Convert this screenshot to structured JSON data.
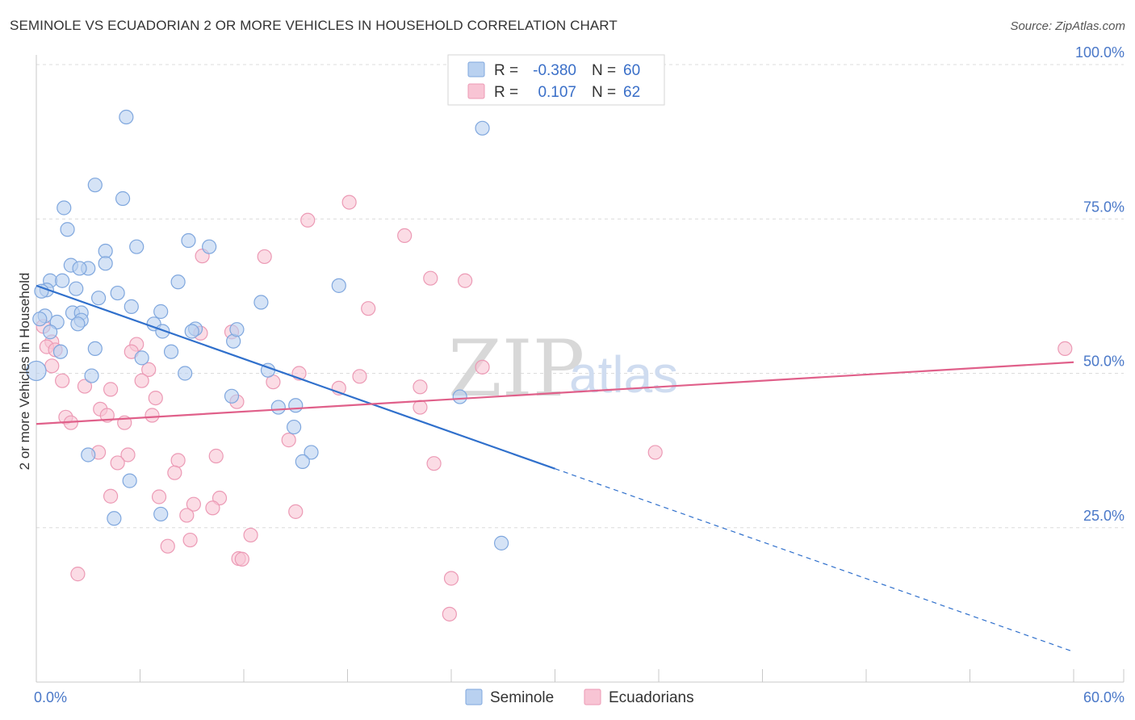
{
  "header": {
    "title": "SEMINOLE VS ECUADORIAN 2 OR MORE VEHICLES IN HOUSEHOLD CORRELATION CHART",
    "source": "Source: ZipAtlas.com"
  },
  "colors": {
    "seminole_fill": "#b9d1f0",
    "seminole_stroke": "#7fa7de",
    "seminole_line": "#3070cc",
    "ecuadorian_fill": "#f8c4d4",
    "ecuadorian_stroke": "#ec9ab5",
    "ecuadorian_line": "#e0608a",
    "grid": "#dcdcdc",
    "tick_text": "#4a78c8"
  },
  "legend": {
    "r_label": "R =",
    "n_label": "N =",
    "series": [
      {
        "r": "-0.380",
        "n": "60"
      },
      {
        "r": "0.107",
        "n": "62"
      }
    ]
  },
  "watermark": {
    "zip": "ZIP",
    "atlas": "atlas"
  },
  "chart_data": {
    "type": "scatter",
    "title": "SEMINOLE VS ECUADORIAN 2 OR MORE VEHICLES IN HOUSEHOLD CORRELATION CHART",
    "xlabel": "",
    "ylabel": "2 or more Vehicles in Household",
    "xlim": [
      0,
      60
    ],
    "ylim": [
      0,
      100
    ],
    "x_tick_labels": [
      "0.0%",
      "60.0%"
    ],
    "y_tick_labels": [
      "100.0%",
      "75.0%",
      "50.0%",
      "25.0%"
    ],
    "y_ticks": [
      100,
      75,
      50,
      25
    ],
    "grid": true,
    "legend_position": "top-center",
    "series": [
      {
        "name": "Seminole",
        "points": [
          [
            5.2,
            91.5
          ],
          [
            3.4,
            80.5
          ],
          [
            5.0,
            78.3
          ],
          [
            1.6,
            76.8
          ],
          [
            1.8,
            73.3
          ],
          [
            8.8,
            71.5
          ],
          [
            5.8,
            70.5
          ],
          [
            10.0,
            70.5
          ],
          [
            4.0,
            69.8
          ],
          [
            4.0,
            67.8
          ],
          [
            2.0,
            67.5
          ],
          [
            3.0,
            67.0
          ],
          [
            2.5,
            67.0
          ],
          [
            0.8,
            65.0
          ],
          [
            1.5,
            65.0
          ],
          [
            8.2,
            64.8
          ],
          [
            0.6,
            63.5
          ],
          [
            2.3,
            63.7
          ],
          [
            0.3,
            63.3
          ],
          [
            4.7,
            63.0
          ],
          [
            3.6,
            62.2
          ],
          [
            13.0,
            61.5
          ],
          [
            5.5,
            60.8
          ],
          [
            7.2,
            60.0
          ],
          [
            2.1,
            59.8
          ],
          [
            2.6,
            59.8
          ],
          [
            0.5,
            59.3
          ],
          [
            0.2,
            58.8
          ],
          [
            2.6,
            58.6
          ],
          [
            1.2,
            58.3
          ],
          [
            2.4,
            58.0
          ],
          [
            6.8,
            58.0
          ],
          [
            7.3,
            56.8
          ],
          [
            9.2,
            57.2
          ],
          [
            0.8,
            56.7
          ],
          [
            9.0,
            56.8
          ],
          [
            11.4,
            55.2
          ],
          [
            3.4,
            54.0
          ],
          [
            1.4,
            53.5
          ],
          [
            7.8,
            53.5
          ],
          [
            6.1,
            52.5
          ],
          [
            13.4,
            50.5
          ],
          [
            8.6,
            50.0
          ],
          [
            3.2,
            49.6
          ],
          [
            11.3,
            46.3
          ],
          [
            14.0,
            44.5
          ],
          [
            15.0,
            44.8
          ],
          [
            14.9,
            41.3
          ],
          [
            15.9,
            37.2
          ],
          [
            15.4,
            35.7
          ],
          [
            3.0,
            36.8
          ],
          [
            5.4,
            32.6
          ],
          [
            7.2,
            27.2
          ],
          [
            4.5,
            26.5
          ],
          [
            26.9,
            22.5
          ],
          [
            25.8,
            89.7
          ],
          [
            17.5,
            64.2
          ],
          [
            0.0,
            50.4
          ],
          [
            24.5,
            46.2
          ],
          [
            11.6,
            57.1
          ]
        ]
      },
      {
        "name": "Ecuadorians",
        "points": [
          [
            18.1,
            77.7
          ],
          [
            15.7,
            74.8
          ],
          [
            21.3,
            72.3
          ],
          [
            9.6,
            69.0
          ],
          [
            13.2,
            68.9
          ],
          [
            22.8,
            65.4
          ],
          [
            24.8,
            65.0
          ],
          [
            19.2,
            60.5
          ],
          [
            0.4,
            57.6
          ],
          [
            0.9,
            55.1
          ],
          [
            11.3,
            56.7
          ],
          [
            9.5,
            56.5
          ],
          [
            0.6,
            54.3
          ],
          [
            1.1,
            53.8
          ],
          [
            5.8,
            54.7
          ],
          [
            5.5,
            53.5
          ],
          [
            0.9,
            51.2
          ],
          [
            6.5,
            50.6
          ],
          [
            25.8,
            51.0
          ],
          [
            15.2,
            50.0
          ],
          [
            18.7,
            49.5
          ],
          [
            6.1,
            48.8
          ],
          [
            1.5,
            48.8
          ],
          [
            13.7,
            48.6
          ],
          [
            2.8,
            47.9
          ],
          [
            22.2,
            47.8
          ],
          [
            17.5,
            47.6
          ],
          [
            4.3,
            47.4
          ],
          [
            6.9,
            46.0
          ],
          [
            11.6,
            45.4
          ],
          [
            3.7,
            44.2
          ],
          [
            22.2,
            44.5
          ],
          [
            4.1,
            43.2
          ],
          [
            1.7,
            42.9
          ],
          [
            6.7,
            43.2
          ],
          [
            2.0,
            42.0
          ],
          [
            5.1,
            42.0
          ],
          [
            14.6,
            39.2
          ],
          [
            3.6,
            37.2
          ],
          [
            35.8,
            37.2
          ],
          [
            5.3,
            36.8
          ],
          [
            10.4,
            36.6
          ],
          [
            8.2,
            35.9
          ],
          [
            4.7,
            35.5
          ],
          [
            23.0,
            35.4
          ],
          [
            8.0,
            33.9
          ],
          [
            4.3,
            30.1
          ],
          [
            7.1,
            30.0
          ],
          [
            10.6,
            29.8
          ],
          [
            9.1,
            28.8
          ],
          [
            10.2,
            28.2
          ],
          [
            15.0,
            27.6
          ],
          [
            8.7,
            27.0
          ],
          [
            12.4,
            23.8
          ],
          [
            8.9,
            23.0
          ],
          [
            7.6,
            22.0
          ],
          [
            11.7,
            20.0
          ],
          [
            11.9,
            19.9
          ],
          [
            2.4,
            17.5
          ],
          [
            24.0,
            16.8
          ],
          [
            23.9,
            11.0
          ],
          [
            59.5,
            54.0
          ]
        ]
      }
    ],
    "trend_lines": [
      {
        "series": "Seminole",
        "x": [
          0,
          60
        ],
        "y": [
          64.2,
          4.9
        ],
        "solid_to_x": 30
      },
      {
        "series": "Ecuadorians",
        "x": [
          0,
          60
        ],
        "y": [
          41.8,
          51.8
        ]
      }
    ]
  },
  "bottom_legend": [
    "Seminole",
    "Ecuadorians"
  ]
}
